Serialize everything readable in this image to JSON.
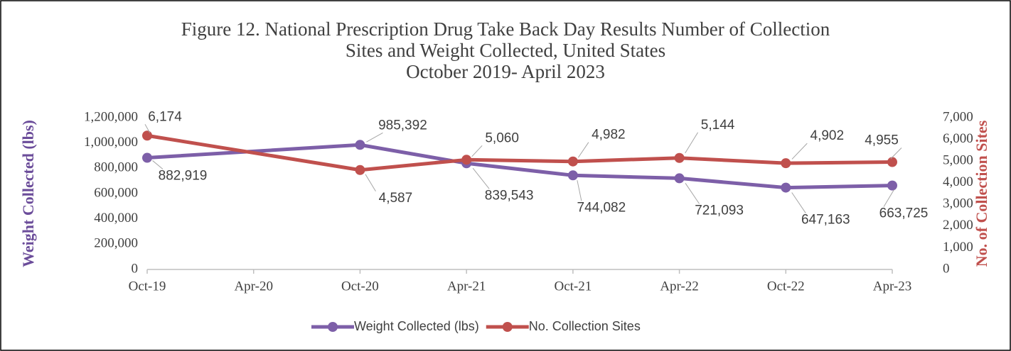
{
  "chart_data": {
    "type": "line",
    "title": "Figure 12. National Prescription Drug Take Back Day Results Number of Collection",
    "subtitle": "Sites and Weight Collected, United States",
    "subtitle2": "October 2019- April 2023",
    "y_label": "Weight Collected (lbs)",
    "y2_label": "No. of Collection Sites",
    "xticks": [
      "Oct-19",
      "Apr-20",
      "Oct-20",
      "Apr-21",
      "Oct-21",
      "Apr-22",
      "Oct-22",
      "Apr-23"
    ],
    "x": [
      "Oct-19",
      "Oct-20",
      "Apr-21",
      "Oct-21",
      "Apr-22",
      "Oct-22",
      "Apr-23"
    ],
    "series": [
      {
        "name": "Weight Collected (lbs)",
        "color": "#7d5fa8",
        "axis": "y",
        "values": [
          882919,
          985392,
          839543,
          744082,
          721093,
          647163,
          663725
        ],
        "value_labels": [
          "882,919",
          "985,392",
          "839,543",
          "744,082",
          "721,093",
          "647,163",
          "663,725"
        ]
      },
      {
        "name": "No. Collection Sites",
        "color": "#c0504d",
        "axis": "y2",
        "values": [
          6174,
          4587,
          5060,
          4982,
          5144,
          4902,
          4955
        ],
        "value_labels": [
          "6,174",
          "4,587",
          "5,060",
          "4,982",
          "5,144",
          "4,902",
          "4,955"
        ]
      }
    ],
    "ylim": [
      0,
      1200000
    ],
    "yticks": [
      0,
      {
        "value": 200000,
        "label": "200,000"
      },
      {
        "value": 400000,
        "label": "400,000"
      },
      {
        "value": 600000,
        "label": "600,000"
      },
      {
        "value": 800000,
        "label": "800,000"
      },
      {
        "value": 1000000,
        "label": "1,000,000"
      },
      {
        "value": 1200000,
        "label": "1,200,000"
      }
    ],
    "y2lim": [
      0,
      7000
    ],
    "y2ticks": [
      0,
      {
        "value": 1000,
        "label": "1,000"
      },
      {
        "value": 2000,
        "label": "2,000"
      },
      {
        "value": 3000,
        "label": "3,000"
      },
      {
        "value": 4000,
        "label": "4,000"
      },
      {
        "value": 5000,
        "label": "5,000"
      },
      {
        "value": 6000,
        "label": "6,000"
      },
      {
        "value": 7000,
        "label": "7,000"
      }
    ],
    "y_label_color": "#6b4c9a",
    "y2_label_color": "#c0504d",
    "legend": "bottom"
  }
}
